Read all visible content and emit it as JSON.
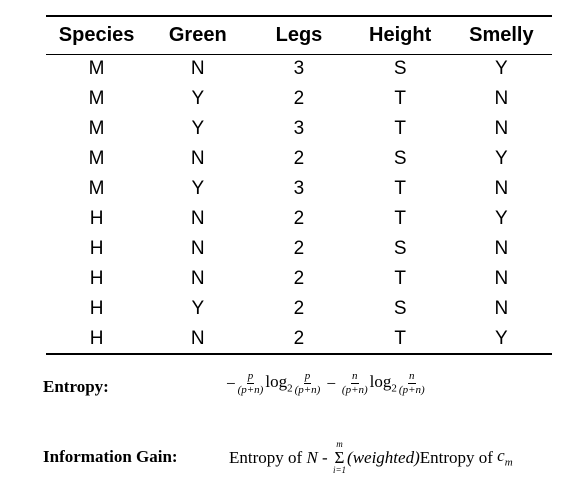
{
  "table": {
    "columns": [
      "Species",
      "Green",
      "Legs",
      "Height",
      "Smelly"
    ],
    "rows": [
      [
        "M",
        "N",
        "3",
        "S",
        "Y"
      ],
      [
        "M",
        "Y",
        "2",
        "T",
        "N"
      ],
      [
        "M",
        "Y",
        "3",
        "T",
        "N"
      ],
      [
        "M",
        "N",
        "2",
        "S",
        "Y"
      ],
      [
        "M",
        "Y",
        "3",
        "T",
        "N"
      ],
      [
        "H",
        "N",
        "2",
        "T",
        "Y"
      ],
      [
        "H",
        "N",
        "2",
        "S",
        "N"
      ],
      [
        "H",
        "N",
        "2",
        "T",
        "N"
      ],
      [
        "H",
        "Y",
        "2",
        "S",
        "N"
      ],
      [
        "H",
        "N",
        "2",
        "T",
        "Y"
      ]
    ]
  },
  "entropy": {
    "label": "Entropy:",
    "minus": "−",
    "p": "p",
    "n": "n",
    "den": "(p+n)",
    "log": "log",
    "base": "2"
  },
  "info_gain": {
    "label": "Information Gain:",
    "prefix": "Entropy of",
    "set": "N",
    "dash": " - ",
    "sum_top": "m",
    "sum_symbol": "Σ",
    "sum_bottom": "i=1",
    "weighted": "(weighted)",
    "suffix": "Entropy of",
    "var": "c",
    "var_sub": "m"
  }
}
